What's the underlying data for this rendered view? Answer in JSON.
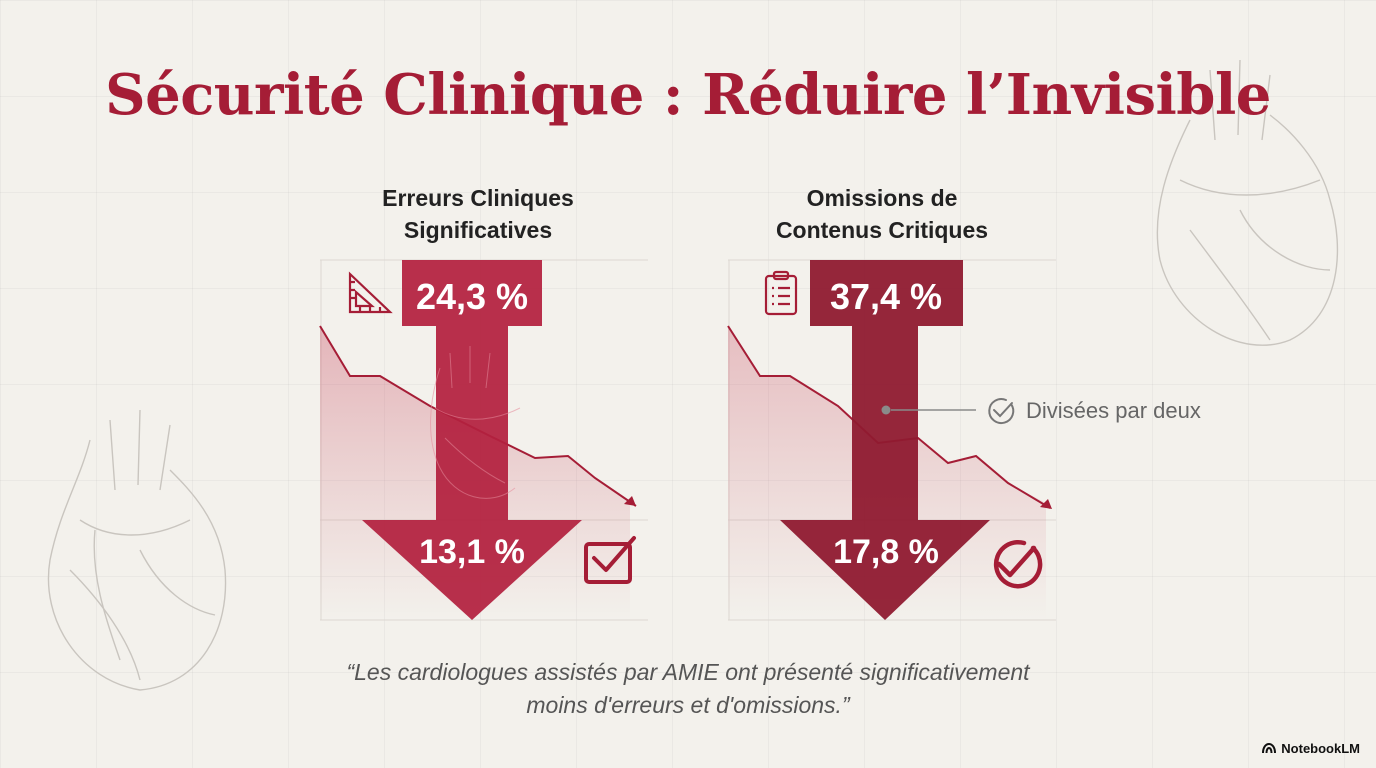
{
  "title": "Sécurité Clinique : Réduire l’Invisible",
  "chart_data": [
    {
      "type": "arrow-comparison",
      "title": "Erreurs Cliniques Significatives",
      "title_lines": [
        "Erreurs Cliniques",
        "Significatives"
      ],
      "before": {
        "value": 24.3,
        "label": "24,3 %"
      },
      "after": {
        "value": 13.1,
        "label": "13,1 %"
      },
      "icon_top": "ruler-triangle-icon",
      "icon_bottom": "checkbox-icon",
      "color": "#b3203e"
    },
    {
      "type": "arrow-comparison",
      "title": "Omissions de Contenus Critiques",
      "title_lines": [
        "Omissions de",
        "Contenus Critiques"
      ],
      "before": {
        "value": 37.4,
        "label": "37,4 %"
      },
      "after": {
        "value": 17.8,
        "label": "17,8 %"
      },
      "icon_top": "clipboard-icon",
      "icon_bottom": "check-circle-icon",
      "annotation": "Divisées par deux",
      "color": "#8f1a30"
    }
  ],
  "quote": {
    "line1": "“Les cardiologues assistés par AMIE ont présenté significativement",
    "line2": "moins d'erreurs et d'omissions.”"
  },
  "brand": {
    "name": "NotebookLM",
    "icon": "notebooklm-logo-icon"
  }
}
